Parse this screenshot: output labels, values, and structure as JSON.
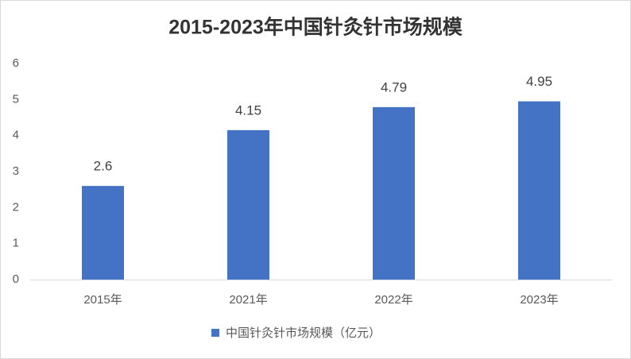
{
  "chart_data": {
    "type": "bar",
    "title": "2015-2023年中国针灸针市场规模",
    "categories": [
      "2015年",
      "2021年",
      "2022年",
      "2023年"
    ],
    "series": [
      {
        "name": "中国针灸针市场规模（亿元）",
        "color": "#4472c4",
        "values": [
          2.6,
          4.15,
          4.79,
          4.95
        ]
      }
    ],
    "ylim": [
      0,
      6
    ],
    "yticks": [
      0,
      1,
      2,
      3,
      4,
      5,
      6
    ],
    "grid": false,
    "legend": "bottom"
  }
}
